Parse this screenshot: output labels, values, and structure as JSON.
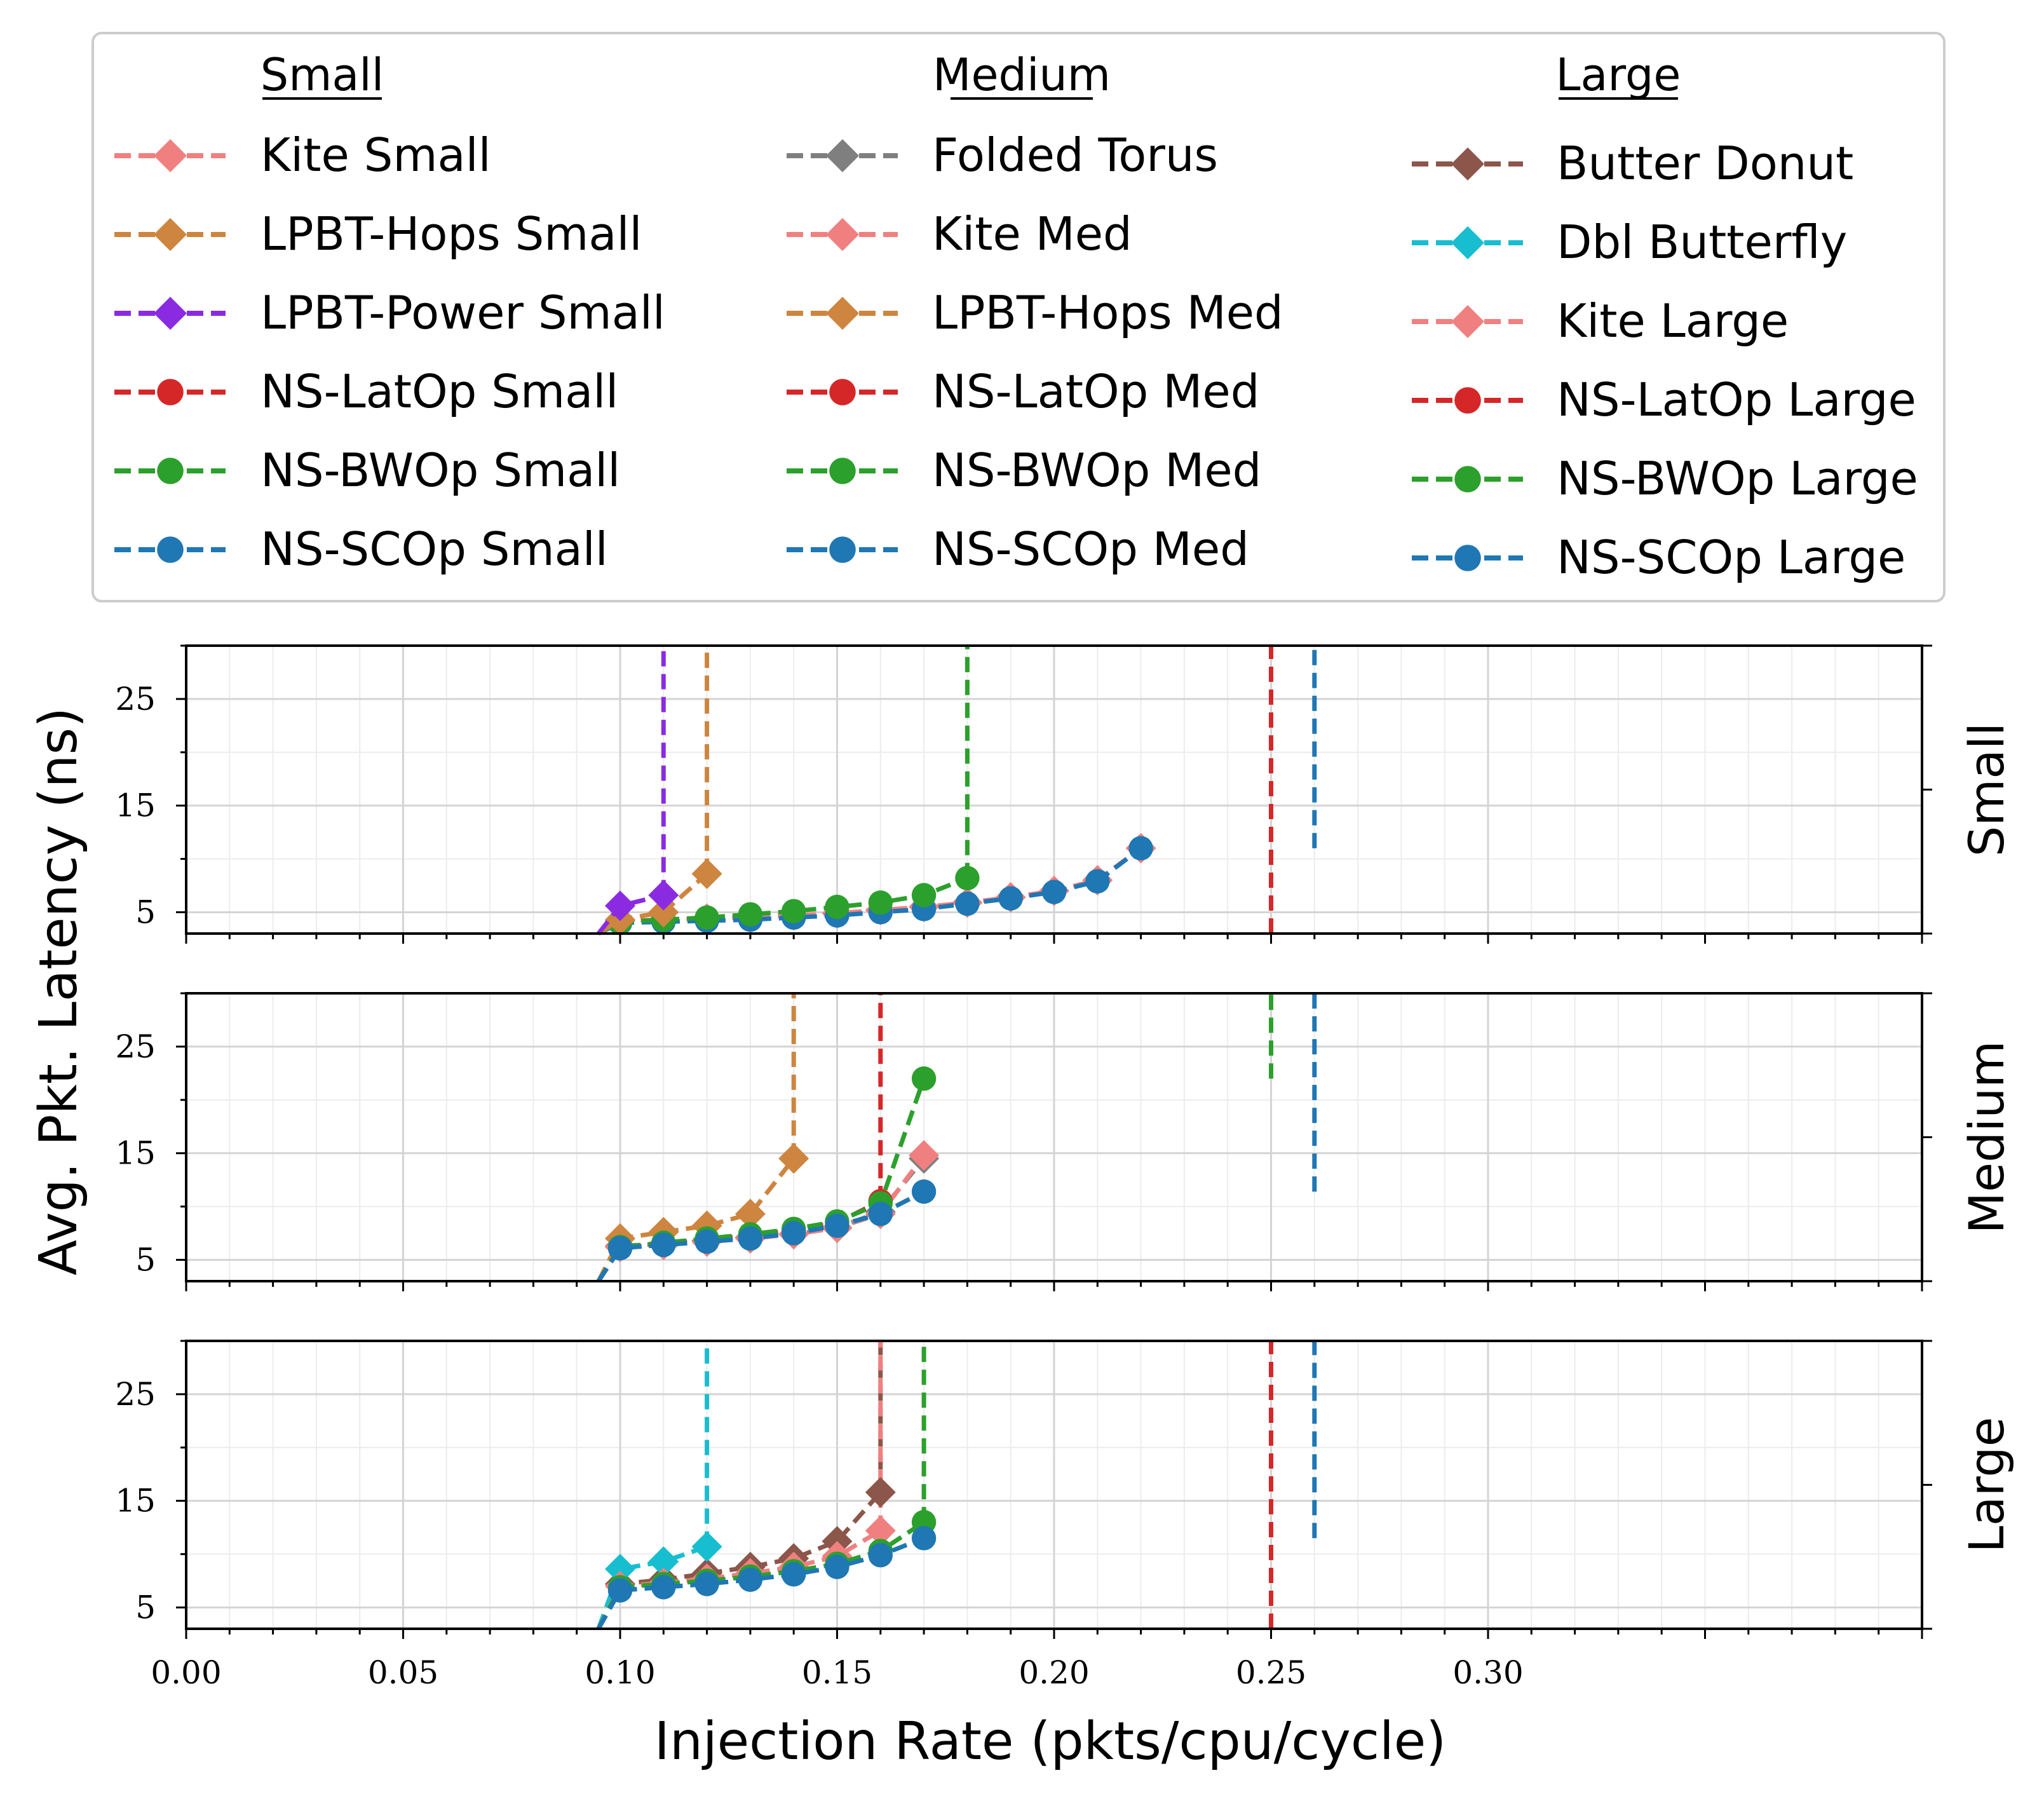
{
  "chart_data": {
    "type": "line",
    "xlabel": "Injection Rate (pkts/cpu/cycle)",
    "ylabel": "Avg. Pkt. Latency (ns)",
    "xlim": [
      0,
      0.4
    ],
    "ylim": [
      3,
      30
    ],
    "x_ticks": [
      0.0,
      0.05,
      0.1,
      0.15,
      0.2,
      0.25,
      0.3
    ],
    "x_tick_labels": [
      "0.00",
      "0.05",
      "0.10",
      "0.15",
      "0.20",
      "0.25",
      "0.30"
    ],
    "y_ticks": [
      5,
      15,
      25
    ],
    "y_tick_labels": [
      "5",
      "15",
      "25"
    ],
    "grid": true,
    "legend_location": "top",
    "legend_groups": [
      {
        "title": "Small",
        "entries": [
          {
            "label": "Kite Small",
            "color": "#f08080",
            "marker": "diamond",
            "dash": true
          },
          {
            "label": "LPBT-Hops Small",
            "color": "#cd853f",
            "marker": "diamond",
            "dash": true
          },
          {
            "label": "LPBT-Power Small",
            "color": "#8a2be2",
            "marker": "diamond",
            "dash": true
          },
          {
            "label": "NS-LatOp Small",
            "color": "#d62728",
            "marker": "circle",
            "dash": true
          },
          {
            "label": "NS-BWOp Small",
            "color": "#2ca02c",
            "marker": "circle",
            "dash": true
          },
          {
            "label": "NS-SCOp Small",
            "color": "#1f77b4",
            "marker": "circle",
            "dash": true
          }
        ]
      },
      {
        "title": "Medium",
        "entries": [
          {
            "label": "Folded Torus",
            "color": "#7f7f7f",
            "marker": "diamond",
            "dash": true
          },
          {
            "label": "Kite Med",
            "color": "#f08080",
            "marker": "diamond",
            "dash": true
          },
          {
            "label": "LPBT-Hops Med",
            "color": "#cd853f",
            "marker": "diamond",
            "dash": true
          },
          {
            "label": "NS-LatOp Med",
            "color": "#d62728",
            "marker": "circle",
            "dash": true
          },
          {
            "label": "NS-BWOp Med",
            "color": "#2ca02c",
            "marker": "circle",
            "dash": true
          },
          {
            "label": "NS-SCOp Med",
            "color": "#1f77b4",
            "marker": "circle",
            "dash": true
          }
        ]
      },
      {
        "title": "Large",
        "entries": [
          {
            "label": "Butter Donut",
            "color": "#8c564b",
            "marker": "diamond",
            "dash": true
          },
          {
            "label": "Dbl Butterfly",
            "color": "#17becf",
            "marker": "diamond",
            "dash": true
          },
          {
            "label": "Kite Large",
            "color": "#f08080",
            "marker": "diamond",
            "dash": true
          },
          {
            "label": "NS-LatOp Large",
            "color": "#d62728",
            "marker": "circle",
            "dash": true
          },
          {
            "label": "NS-BWOp Large",
            "color": "#2ca02c",
            "marker": "circle",
            "dash": true
          },
          {
            "label": "NS-SCOp Large",
            "color": "#1f77b4",
            "marker": "circle",
            "dash": true
          }
        ]
      }
    ],
    "panels": [
      {
        "name": "Small",
        "series": [
          {
            "name": "Kite Small",
            "color": "#f08080",
            "marker": "diamond",
            "x": [
              0.1,
              0.11,
              0.12,
              0.13,
              0.14,
              0.15,
              0.16,
              0.17,
              0.18,
              0.19,
              0.2,
              0.21,
              0.22
            ],
            "y": [
              4.2,
              4.3,
              4.4,
              4.5,
              4.7,
              4.9,
              5.2,
              5.5,
              5.9,
              6.4,
              7.0,
              8.0,
              11.0
            ]
          },
          {
            "name": "NS-LatOp Small",
            "color": "#d62728",
            "marker": "circle",
            "x": [
              0.25
            ],
            "y": [
              null
            ],
            "saturation_x": 0.25
          },
          {
            "name": "NS-SCOp Small",
            "color": "#1f77b4",
            "marker": "circle",
            "x": [
              0.1,
              0.11,
              0.12,
              0.13,
              0.14,
              0.15,
              0.16,
              0.17,
              0.18,
              0.19,
              0.2,
              0.21,
              0.22
            ],
            "y": [
              4.0,
              4.1,
              4.2,
              4.3,
              4.5,
              4.7,
              5.0,
              5.3,
              5.8,
              6.3,
              6.9,
              7.9,
              11.0
            ],
            "saturation_x": 0.26
          },
          {
            "name": "NS-BWOp Small",
            "color": "#2ca02c",
            "marker": "circle",
            "x": [
              0.1,
              0.11,
              0.12,
              0.13,
              0.14,
              0.15,
              0.16,
              0.17,
              0.18
            ],
            "y": [
              4.1,
              4.3,
              4.5,
              4.8,
              5.1,
              5.5,
              5.9,
              6.6,
              8.2
            ],
            "saturation_x": 0.18
          },
          {
            "name": "LPBT-Hops Small",
            "color": "#cd853f",
            "marker": "diamond",
            "x": [
              0.1,
              0.11,
              0.12
            ],
            "y": [
              4.3,
              5.0,
              8.6
            ],
            "saturation_x": 0.12
          },
          {
            "name": "LPBT-Power Small",
            "color": "#8a2be2",
            "marker": "diamond",
            "x": [
              0.1,
              0.11
            ],
            "y": [
              5.6,
              6.6
            ],
            "saturation_x": 0.11
          }
        ]
      },
      {
        "name": "Medium",
        "series": [
          {
            "name": "Folded Torus",
            "color": "#7f7f7f",
            "marker": "diamond",
            "x": [
              0.1,
              0.11,
              0.12,
              0.13,
              0.14,
              0.15,
              0.16,
              0.17
            ],
            "y": [
              6.3,
              6.5,
              6.8,
              7.1,
              7.4,
              8.0,
              9.5,
              14.5
            ]
          },
          {
            "name": "Kite Med",
            "color": "#f08080",
            "marker": "diamond",
            "x": [
              0.1,
              0.11,
              0.12,
              0.13,
              0.14,
              0.15,
              0.16,
              0.17
            ],
            "y": [
              6.2,
              6.4,
              6.7,
              7.0,
              7.4,
              8.0,
              9.3,
              14.8
            ]
          },
          {
            "name": "LPBT-Hops Med",
            "color": "#cd853f",
            "marker": "diamond",
            "x": [
              0.1,
              0.11,
              0.12,
              0.13,
              0.14
            ],
            "y": [
              7.0,
              7.6,
              8.2,
              9.3,
              14.5
            ],
            "saturation_x": 0.14
          },
          {
            "name": "NS-LatOp Med",
            "color": "#d62728",
            "marker": "circle",
            "x": [
              0.1,
              0.11,
              0.12,
              0.13,
              0.14,
              0.15,
              0.16
            ],
            "y": [
              6.1,
              6.5,
              6.9,
              7.3,
              7.8,
              8.5,
              10.5
            ],
            "saturation_x": 0.16
          },
          {
            "name": "NS-BWOp Med",
            "color": "#2ca02c",
            "marker": "circle",
            "x": [
              0.1,
              0.11,
              0.12,
              0.13,
              0.14,
              0.15,
              0.16,
              0.17
            ],
            "y": [
              6.2,
              6.6,
              7.0,
              7.4,
              7.9,
              8.6,
              10.3,
              22.0
            ],
            "saturation_x": 0.25
          },
          {
            "name": "NS-SCOp Med",
            "color": "#1f77b4",
            "marker": "circle",
            "x": [
              0.1,
              0.11,
              0.12,
              0.13,
              0.14,
              0.15,
              0.16,
              0.17
            ],
            "y": [
              6.1,
              6.4,
              6.7,
              7.0,
              7.5,
              8.2,
              9.3,
              11.4
            ],
            "saturation_x": 0.26
          }
        ]
      },
      {
        "name": "Large",
        "series": [
          {
            "name": "Butter Donut",
            "color": "#8c564b",
            "marker": "diamond",
            "x": [
              0.1,
              0.11,
              0.12,
              0.13,
              0.14,
              0.15,
              0.16
            ],
            "y": [
              7.2,
              7.6,
              8.2,
              8.8,
              9.6,
              11.2,
              15.8
            ],
            "saturation_x": 0.16
          },
          {
            "name": "Dbl Butterfly",
            "color": "#17becf",
            "marker": "diamond",
            "x": [
              0.1,
              0.11,
              0.12
            ],
            "y": [
              8.6,
              9.3,
              10.7
            ],
            "saturation_x": 0.12
          },
          {
            "name": "Kite Large",
            "color": "#f08080",
            "marker": "diamond",
            "x": [
              0.1,
              0.11,
              0.12,
              0.13,
              0.14,
              0.15,
              0.16
            ],
            "y": [
              7.0,
              7.3,
              7.7,
              8.2,
              8.8,
              9.8,
              12.2
            ],
            "saturation_x": 0.16
          },
          {
            "name": "NS-LatOp Large",
            "color": "#d62728",
            "marker": "circle",
            "x": [
              0.25
            ],
            "y": [
              null
            ],
            "saturation_x": 0.25
          },
          {
            "name": "NS-BWOp Large",
            "color": "#2ca02c",
            "marker": "circle",
            "x": [
              0.1,
              0.11,
              0.12,
              0.13,
              0.14,
              0.15,
              0.16,
              0.17
            ],
            "y": [
              6.9,
              7.2,
              7.5,
              7.9,
              8.4,
              9.1,
              10.3,
              13.0
            ],
            "saturation_x": 0.17
          },
          {
            "name": "NS-SCOp Large",
            "color": "#1f77b4",
            "marker": "circle",
            "x": [
              0.1,
              0.11,
              0.12,
              0.13,
              0.14,
              0.15,
              0.16,
              0.17
            ],
            "y": [
              6.6,
              6.9,
              7.2,
              7.6,
              8.1,
              8.8,
              9.9,
              11.5
            ],
            "saturation_x": 0.26
          }
        ]
      }
    ]
  }
}
